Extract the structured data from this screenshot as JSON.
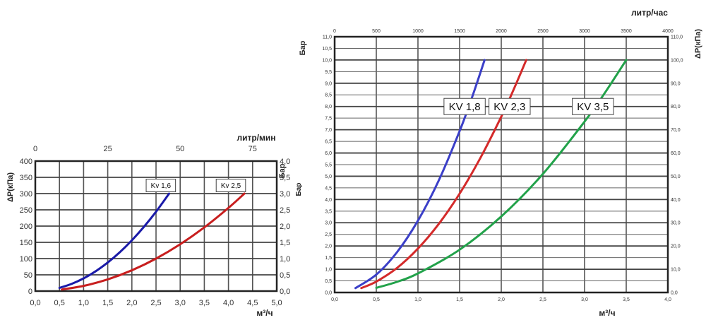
{
  "chart_data": [
    {
      "type": "line",
      "title": "",
      "xlabel": "м³/ч",
      "x2label": "литр/мин",
      "ylabel": "ΔP(кПа)",
      "y2label": "Бар",
      "xlim": [
        0,
        5
      ],
      "ylim": [
        0,
        400
      ],
      "y2lim": [
        0,
        4
      ],
      "grid": true,
      "x_ticks": [
        "0,0",
        "0,5",
        "1,0",
        "1,5",
        "2,0",
        "2,5",
        "3,0",
        "3,5",
        "4,0",
        "4,5",
        "5,0"
      ],
      "x2_ticks": [
        {
          "value": 0,
          "label": "0"
        },
        {
          "value": 25,
          "label": "25"
        },
        {
          "value": 50,
          "label": "50"
        },
        {
          "value": 75,
          "label": "75"
        }
      ],
      "x2_per_x": 16.667,
      "y_ticks": [
        "0",
        "50",
        "100",
        "150",
        "200",
        "250",
        "300",
        "350",
        "400"
      ],
      "y2_ticks": [
        "0,0",
        "0,5",
        "1,0",
        "1,5",
        "2,0",
        "2,5",
        "3,0",
        "3,5",
        "4,0"
      ],
      "series": [
        {
          "name": "Kv 1,6",
          "color": "#1a1aa8",
          "label_at": [
            2.6,
            325
          ],
          "x": [
            0.5,
            0.75,
            1.0,
            1.25,
            1.5,
            1.75,
            2.0,
            2.25,
            2.5,
            2.77
          ],
          "y": [
            9.8,
            22.0,
            39.1,
            61.0,
            87.9,
            119.6,
            156.3,
            197.8,
            244.1,
            299.7
          ]
        },
        {
          "name": "Kv 2,5",
          "color": "#c81e1e",
          "label_at": [
            4.05,
            325
          ],
          "x": [
            0.55,
            1.0,
            1.5,
            2.0,
            2.5,
            3.0,
            3.5,
            4.0,
            4.33
          ],
          "y": [
            4.8,
            16,
            36,
            64,
            100,
            144,
            196,
            256,
            300
          ]
        }
      ]
    },
    {
      "type": "line",
      "title": "",
      "xlabel": "м³/ч",
      "x2label": "литр/час",
      "ylabel": "Бар",
      "ylabel_secondary": "Бар",
      "y2label": "ΔP(кПа)",
      "xlim": [
        0,
        4
      ],
      "ylim": [
        0,
        11
      ],
      "y2lim": [
        0,
        110
      ],
      "grid": true,
      "x_ticks": [
        "0,0",
        "0,5",
        "1,0",
        "1,5",
        "2,0",
        "2,5",
        "3,0",
        "3,5",
        "4,0"
      ],
      "x2_ticks": [
        {
          "value": 0,
          "label": "0"
        },
        {
          "value": 500,
          "label": "500"
        },
        {
          "value": 1000,
          "label": "1000"
        },
        {
          "value": 1500,
          "label": "1500"
        },
        {
          "value": 2000,
          "label": "2000"
        },
        {
          "value": 2500,
          "label": "2500"
        },
        {
          "value": 3000,
          "label": "3000"
        },
        {
          "value": 3500,
          "label": "3500"
        },
        {
          "value": 4000,
          "label": "4000"
        }
      ],
      "x2_per_x": 1000,
      "y_ticks": [
        "0,0",
        "0,5",
        "1,0",
        "1,5",
        "2,0",
        "2,5",
        "3,0",
        "3,5",
        "4,0",
        "4,5",
        "5,0",
        "5,5",
        "6,0",
        "6,5",
        "7,0",
        "7,5",
        "8,0",
        "8,5",
        "9,0",
        "9,5",
        "10,0",
        "10,5",
        "11,0"
      ],
      "y2_ticks": [
        "0,0",
        "10,0",
        "20,0",
        "30,0",
        "40,0",
        "50,0",
        "60,0",
        "70,0",
        "80,0",
        "90,0",
        "100,0",
        "110,0"
      ],
      "series": [
        {
          "name": "KV 1,8",
          "color": "#3b3fc8",
          "label_at": [
            1.56,
            8.0
          ],
          "x": [
            0.25,
            0.5,
            0.75,
            1.0,
            1.25,
            1.5,
            1.65,
            1.8
          ],
          "y": [
            0.19,
            0.77,
            1.74,
            3.09,
            4.82,
            6.94,
            8.4,
            10.0
          ]
        },
        {
          "name": "KV 2,3",
          "color": "#d42a2a",
          "label_at": [
            2.1,
            8.0
          ],
          "x": [
            0.32,
            0.5,
            0.75,
            1.0,
            1.25,
            1.5,
            1.75,
            2.0,
            2.15,
            2.3
          ],
          "y": [
            0.19,
            0.47,
            1.06,
            1.89,
            2.95,
            4.25,
            5.79,
            7.56,
            8.74,
            10.0
          ]
        },
        {
          "name": "KV 3,5",
          "color": "#22a24a",
          "label_at": [
            3.1,
            8.0
          ],
          "x": [
            0.5,
            0.75,
            1.0,
            1.5,
            2.0,
            2.5,
            3.0,
            3.25,
            3.5
          ],
          "y": [
            0.2,
            0.46,
            0.82,
            1.84,
            3.27,
            5.1,
            7.35,
            8.62,
            10.0
          ]
        }
      ]
    }
  ]
}
